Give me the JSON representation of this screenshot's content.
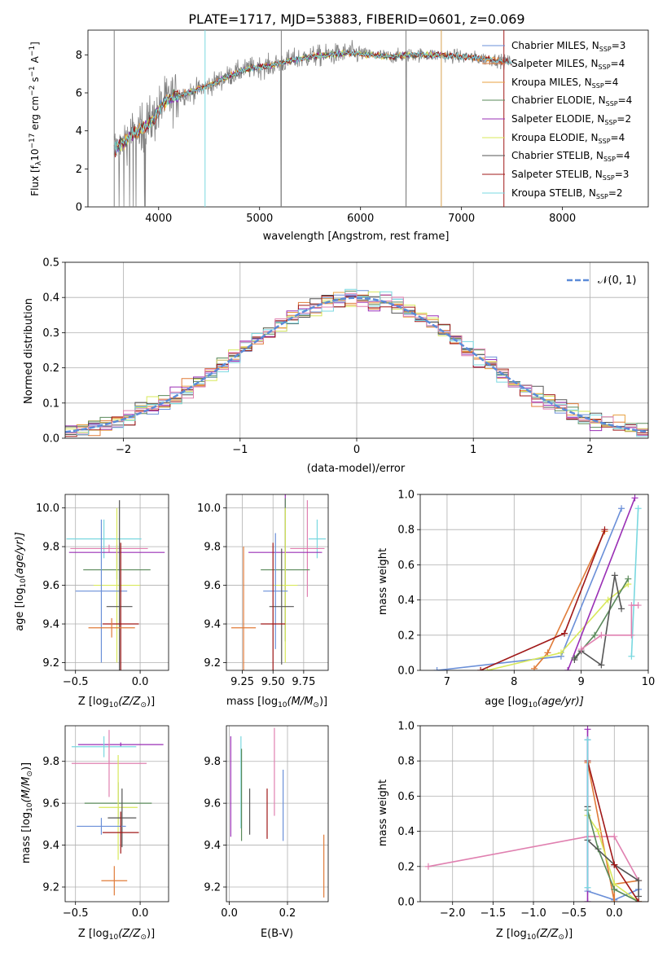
{
  "title": "PLATE=1717, MJD=53883, FIBERID=0601, z=0.069",
  "colors": {
    "chabrier_miles": "#6a8fd8",
    "salpeter_miles": "#e07b39",
    "kroupa_miles": "#e8a040",
    "chabrier_elodie": "#5a8a5a",
    "salpeter_elodie": "#9a2fb5",
    "kroupa_elodie": "#d8e85a",
    "chabrier_stelib": "#555555",
    "salpeter_stelib": "#a01818",
    "kroupa_stelib": "#7ad8e0",
    "pink": "#e080b0",
    "spectrum_grey": "#808080",
    "normal": "#5b8bd8"
  },
  "chart_data": [
    {
      "id": "spectrum",
      "type": "line",
      "xlabel": "wavelength [Angstrom, rest frame]",
      "ylabel_parts": [
        "Flux [f",
        "λ",
        "10",
        "−17",
        " erg cm",
        "−2",
        " s",
        "−1",
        " A",
        "−1",
        "]"
      ],
      "xlim": [
        3300,
        8850
      ],
      "ylim": [
        0,
        9.3
      ],
      "xticks": [
        4000,
        5000,
        6000,
        7000,
        8000
      ],
      "yticks": [
        0,
        2,
        4,
        6,
        8
      ],
      "continuum": [
        [
          3550,
          3.0
        ],
        [
          3650,
          3.4
        ],
        [
          3750,
          3.9
        ],
        [
          3850,
          4.2
        ],
        [
          3950,
          4.6
        ],
        [
          4050,
          5.5
        ],
        [
          4150,
          5.8
        ],
        [
          4300,
          6.0
        ],
        [
          4500,
          6.4
        ],
        [
          4700,
          6.9
        ],
        [
          4900,
          7.3
        ],
        [
          5100,
          7.4
        ],
        [
          5300,
          7.7
        ],
        [
          5500,
          7.9
        ],
        [
          5700,
          8.0
        ],
        [
          5900,
          8.1
        ],
        [
          6100,
          8.0
        ],
        [
          6300,
          7.9
        ],
        [
          6500,
          8.0
        ],
        [
          6700,
          8.0
        ],
        [
          6900,
          7.95
        ],
        [
          7100,
          7.85
        ],
        [
          7300,
          7.75
        ],
        [
          7500,
          7.6
        ],
        [
          7700,
          7.4
        ],
        [
          7900,
          7.2
        ],
        [
          8100,
          7.0
        ],
        [
          8300,
          6.8
        ],
        [
          8500,
          6.6
        ],
        [
          8750,
          6.4
        ]
      ],
      "legend": [
        {
          "label": "Chabrier MILES, N",
          "sub": "SSP",
          "tail": "=3",
          "color_key": "chabrier_miles"
        },
        {
          "label": "Salpeter MILES, N",
          "sub": "SSP",
          "tail": "=4",
          "color_key": "salpeter_miles"
        },
        {
          "label": "Kroupa MILES, N",
          "sub": "SSP",
          "tail": "=4",
          "color_key": "kroupa_miles"
        },
        {
          "label": "Chabrier ELODIE, N",
          "sub": "SSP",
          "tail": "=4",
          "color_key": "chabrier_elodie"
        },
        {
          "label": "Salpeter ELODIE, N",
          "sub": "SSP",
          "tail": "=2",
          "color_key": "salpeter_elodie"
        },
        {
          "label": "Kroupa ELODIE, N",
          "sub": "SSP",
          "tail": "=4",
          "color_key": "kroupa_elodie"
        },
        {
          "label": "Chabrier STELIB, N",
          "sub": "SSP",
          "tail": "=4",
          "color_key": "chabrier_stelib"
        },
        {
          "label": "Salpeter STELIB, N",
          "sub": "SSP",
          "tail": "=3",
          "color_key": "salpeter_stelib"
        },
        {
          "label": "Kroupa STELIB, N",
          "sub": "SSP",
          "tail": "=2",
          "color_key": "kroupa_stelib"
        }
      ],
      "legend_placement": "right",
      "grid": false
    },
    {
      "id": "residuals",
      "type": "step",
      "xlabel": "(data-model)/error",
      "ylabel": "Normed distribution",
      "xlim": [
        -2.5,
        2.5
      ],
      "ylim": [
        0,
        0.5
      ],
      "xticks": [
        -2,
        -1,
        0,
        1,
        2
      ],
      "xtick_labels": [
        "−2",
        "−1",
        "0",
        "1",
        "2"
      ],
      "yticks": [
        0,
        0.1,
        0.2,
        0.3,
        0.4,
        0.5
      ],
      "ytick_labels": [
        "0.0",
        "0.1",
        "0.2",
        "0.3",
        "0.4",
        "0.5"
      ],
      "legend": {
        "label": "𝒩(0, 1)",
        "color_key": "normal"
      },
      "grid": true
    },
    {
      "id": "z_age",
      "type": "errorbar",
      "xlabel_main": "Z [log",
      "xlabel_sub": "10",
      "xlabel_rest": "(Z/Z",
      "xlabel_sun": "⊙",
      "xlabel_end": ")]",
      "ylabel_main": "age  [log",
      "ylabel_sub": "10",
      "ylabel_rest": "(age/yr)]",
      "xlim": [
        -0.58,
        0.22
      ],
      "ylim": [
        9.16,
        10.07
      ],
      "xticks": [
        -0.5,
        0.0
      ],
      "xtick_labels": [
        "−0.5",
        "0.0"
      ],
      "yticks": [
        9.2,
        9.4,
        9.6,
        9.8,
        10.0
      ],
      "ytick_labels": [
        "9.2",
        "9.4",
        "9.6",
        "9.8",
        "10.0"
      ],
      "points": [
        {
          "x": -0.28,
          "xe": 0.29,
          "y": 9.84,
          "ye": 0.1,
          "color_key": "kroupa_stelib"
        },
        {
          "x": -0.24,
          "xe": 0.3,
          "y": 9.79,
          "ye": 0.02,
          "color_key": "pink"
        },
        {
          "x": -0.18,
          "xe": 0.37,
          "y": 9.77,
          "ye": 0.04,
          "color_key": "salpeter_elodie"
        },
        {
          "x": -0.18,
          "xe": 0.26,
          "y": 9.68,
          "ye": 0.05,
          "color_key": "chabrier_elodie"
        },
        {
          "x": -0.18,
          "xe": 0.18,
          "y": 9.6,
          "ye": 0.4,
          "color_key": "kroupa_elodie"
        },
        {
          "x": -0.3,
          "xe": 0.2,
          "y": 9.57,
          "ye": 0.37,
          "color_key": "chabrier_miles"
        },
        {
          "x": -0.16,
          "xe": 0.1,
          "y": 9.49,
          "ye": 0.55,
          "color_key": "chabrier_stelib"
        },
        {
          "x": -0.15,
          "xe": 0.14,
          "y": 9.4,
          "ye": 0.42,
          "color_key": "salpeter_stelib"
        },
        {
          "x": -0.22,
          "xe": 0.18,
          "y": 9.38,
          "ye": 0.05,
          "color_key": "salpeter_miles"
        }
      ],
      "grid": true
    },
    {
      "id": "mass_age",
      "type": "errorbar",
      "xlabel_main": "mass [log",
      "xlabel_sub": "10",
      "xlabel_rest": "(M/M",
      "xlabel_sun": "⊙",
      "xlabel_end": ")]",
      "xlim": [
        9.12,
        9.95
      ],
      "ylim": [
        9.16,
        10.07
      ],
      "xticks": [
        9.25,
        9.5,
        9.75
      ],
      "xtick_labels": [
        "9.25",
        "9.50",
        "9.75"
      ],
      "yticks": [
        9.2,
        9.4,
        9.6,
        9.8,
        10.0
      ],
      "ytick_labels": [
        "9.2",
        "9.4",
        "9.6",
        "9.8",
        "10.0"
      ],
      "points": [
        {
          "x": 9.86,
          "xe": 0.07,
          "y": 9.84,
          "ye": 0.1,
          "color_key": "kroupa_stelib"
        },
        {
          "x": 9.78,
          "xe": 0.14,
          "y": 9.79,
          "ye": 0.25,
          "color_key": "pink"
        },
        {
          "x": 9.6,
          "xe": 0.3,
          "y": 9.77,
          "ye": 0.4,
          "color_key": "salpeter_elodie"
        },
        {
          "x": 9.6,
          "xe": 0.2,
          "y": 9.68,
          "ye": 0.37,
          "color_key": "chabrier_elodie"
        },
        {
          "x": 9.6,
          "xe": 0.1,
          "y": 9.6,
          "ye": 0.4,
          "color_key": "kroupa_elodie"
        },
        {
          "x": 9.52,
          "xe": 0.1,
          "y": 9.57,
          "ye": 0.3,
          "color_key": "chabrier_miles"
        },
        {
          "x": 9.57,
          "xe": 0.1,
          "y": 9.49,
          "ye": 0.3,
          "color_key": "chabrier_stelib"
        },
        {
          "x": 9.5,
          "xe": 0.1,
          "y": 9.4,
          "ye": 0.42,
          "color_key": "salpeter_stelib"
        },
        {
          "x": 9.26,
          "xe": 0.1,
          "y": 9.38,
          "ye": 0.42,
          "color_key": "salpeter_miles"
        }
      ],
      "grid": true
    },
    {
      "id": "age_weight",
      "type": "line",
      "xlabel_main": "age  [log",
      "xlabel_sub": "10",
      "xlabel_rest": "(age/yr)]",
      "ylabel": "mass weight",
      "xlim": [
        6.6,
        10.0
      ],
      "ylim": [
        0.0,
        1.0
      ],
      "xticks": [
        7,
        8,
        9,
        10
      ],
      "yticks": [
        0.0,
        0.2,
        0.4,
        0.6,
        0.8,
        1.0
      ],
      "ytick_labels": [
        "0.0",
        "0.2",
        "0.4",
        "0.6",
        "0.8",
        "1.0"
      ],
      "series": [
        {
          "color_key": "chabrier_miles",
          "points": [
            [
              6.85,
              0.0
            ],
            [
              8.7,
              0.08
            ],
            [
              9.6,
              0.92
            ]
          ]
        },
        {
          "color_key": "salpeter_miles",
          "points": [
            [
              8.3,
              0.01
            ],
            [
              8.5,
              0.1
            ],
            [
              9.35,
              0.79
            ]
          ]
        },
        {
          "color_key": "kroupa_elodie",
          "points": [
            [
              7.6,
              0.0
            ],
            [
              8.7,
              0.1
            ],
            [
              9.4,
              0.4
            ],
            [
              9.7,
              0.49
            ]
          ]
        },
        {
          "color_key": "salpeter_elodie",
          "points": [
            [
              8.8,
              0.0
            ],
            [
              9.8,
              0.98
            ]
          ]
        },
        {
          "color_key": "chabrier_elodie",
          "points": [
            [
              8.9,
              0.07
            ],
            [
              9.2,
              0.2
            ],
            [
              9.7,
              0.52
            ]
          ]
        },
        {
          "color_key": "chabrier_stelib",
          "points": [
            [
              8.9,
              0.06
            ],
            [
              9.0,
              0.11
            ],
            [
              9.3,
              0.03
            ],
            [
              9.5,
              0.54
            ],
            [
              9.6,
              0.35
            ]
          ]
        },
        {
          "color_key": "salpeter_stelib",
          "points": [
            [
              7.5,
              0.0
            ],
            [
              8.75,
              0.21
            ],
            [
              9.35,
              0.8
            ]
          ]
        },
        {
          "color_key": "kroupa_stelib",
          "points": [
            [
              9.75,
              0.08
            ],
            [
              9.85,
              0.92
            ]
          ]
        },
        {
          "color_key": "pink",
          "points": [
            [
              9.0,
              0.12
            ],
            [
              9.3,
              0.2
            ],
            [
              9.75,
              0.2
            ],
            [
              9.75,
              0.37
            ],
            [
              9.85,
              0.37
            ]
          ]
        }
      ],
      "grid": true
    },
    {
      "id": "z_mass",
      "type": "errorbar",
      "xlabel_main": "Z [log",
      "xlabel_sub": "10",
      "xlabel_rest": "(Z/Z",
      "xlabel_sun": "⊙",
      "xlabel_end": ")]",
      "ylabel_main": "mass [log",
      "ylabel_sub": "10",
      "ylabel_rest": "(M/M",
      "ylabel_sun": "⊙",
      "ylabel_end": ")]",
      "xlim": [
        -0.58,
        0.22
      ],
      "ylim": [
        9.13,
        9.97
      ],
      "xticks": [
        -0.5,
        0.0
      ],
      "xtick_labels": [
        "−0.5",
        "0.0"
      ],
      "yticks": [
        9.2,
        9.4,
        9.6,
        9.8
      ],
      "ytick_labels": [
        "9.2",
        "9.4",
        "9.6",
        "9.8"
      ],
      "points": [
        {
          "x": -0.15,
          "xe": 0.33,
          "y": 9.88,
          "ye": 0.01,
          "color_key": "salpeter_elodie"
        },
        {
          "x": -0.28,
          "xe": 0.25,
          "y": 9.87,
          "ye": 0.05,
          "color_key": "kroupa_stelib"
        },
        {
          "x": -0.24,
          "xe": 0.29,
          "y": 9.79,
          "ye": 0.16,
          "color_key": "pink"
        },
        {
          "x": -0.17,
          "xe": 0.26,
          "y": 9.6,
          "ye": 0.1,
          "color_key": "chabrier_elodie"
        },
        {
          "x": -0.17,
          "xe": 0.15,
          "y": 9.58,
          "ye": 0.25,
          "color_key": "kroupa_elodie"
        },
        {
          "x": -0.14,
          "xe": 0.11,
          "y": 9.53,
          "ye": 0.14,
          "color_key": "chabrier_stelib"
        },
        {
          "x": -0.3,
          "xe": 0.19,
          "y": 9.49,
          "ye": 0.04,
          "color_key": "chabrier_miles"
        },
        {
          "x": -0.15,
          "xe": 0.14,
          "y": 9.46,
          "ye": 0.1,
          "color_key": "salpeter_stelib"
        },
        {
          "x": -0.2,
          "xe": 0.1,
          "y": 9.23,
          "ye": 0.07,
          "color_key": "salpeter_miles"
        }
      ],
      "grid": true
    },
    {
      "id": "ebv_mass",
      "type": "errorbar",
      "xlabel": "E(B-V)",
      "xlim": [
        -0.01,
        0.34
      ],
      "ylim": [
        9.13,
        9.97
      ],
      "xticks": [
        0.0,
        0.2
      ],
      "xtick_labels": [
        "0.0",
        "0.2"
      ],
      "yticks": [
        9.2,
        9.4,
        9.6,
        9.8
      ],
      "ytick_labels": [
        "9.2",
        "9.4",
        "9.6",
        "9.8"
      ],
      "points": [
        {
          "x": 0.005,
          "y": 9.68,
          "ye": 0.24,
          "color_key": "salpeter_elodie"
        },
        {
          "x": 0.04,
          "y": 9.7,
          "ye": 0.22,
          "color_key": "kroupa_stelib"
        },
        {
          "x": 0.042,
          "y": 9.64,
          "ye": 0.22,
          "color_key": "chabrier_elodie"
        },
        {
          "x": 0.07,
          "y": 9.56,
          "ye": 0.11,
          "color_key": "chabrier_stelib"
        },
        {
          "x": 0.13,
          "y": 9.55,
          "ye": 0.12,
          "color_key": "salpeter_stelib"
        },
        {
          "x": 0.155,
          "y": 9.75,
          "ye": 0.21,
          "color_key": "pink"
        },
        {
          "x": 0.185,
          "y": 9.59,
          "ye": 0.17,
          "color_key": "chabrier_miles"
        },
        {
          "x": 0.325,
          "y": 9.3,
          "ye": 0.15,
          "color_key": "salpeter_miles"
        }
      ],
      "grid": true
    },
    {
      "id": "z_weight",
      "type": "line",
      "xlabel_main": "Z [log",
      "xlabel_sub": "10",
      "xlabel_rest": "(Z/Z",
      "xlabel_sun": "⊙",
      "xlabel_end": ")]",
      "ylabel": "mass weight",
      "xlim": [
        -2.4,
        0.42
      ],
      "ylim": [
        0.0,
        1.0
      ],
      "xticks": [
        -2.0,
        -1.5,
        -1.0,
        -0.5,
        0.0
      ],
      "xtick_labels": [
        "−2.0",
        "−1.5",
        "−1.0",
        "−0.5",
        "0.0"
      ],
      "yticks": [
        0.0,
        0.2,
        0.4,
        0.6,
        0.8,
        1.0
      ],
      "ytick_labels": [
        "0.0",
        "0.2",
        "0.4",
        "0.6",
        "0.8",
        "1.0"
      ],
      "series": [
        {
          "color_key": "pink",
          "points": [
            [
              -2.3,
              0.2
            ],
            [
              -0.33,
              0.37
            ],
            [
              0.0,
              0.37
            ],
            [
              0.3,
              0.12
            ]
          ]
        },
        {
          "color_key": "chabrier_miles",
          "points": [
            [
              -0.33,
              0.92
            ],
            [
              -0.33,
              0.06
            ],
            [
              0.0,
              0.01
            ],
            [
              0.3,
              0.07
            ]
          ]
        },
        {
          "color_key": "salpeter_miles",
          "points": [
            [
              -0.33,
              0.79
            ],
            [
              0.0,
              0.0
            ],
            [
              0.0,
              0.1
            ],
            [
              0.3,
              0.12
            ]
          ]
        },
        {
          "color_key": "kroupa_elodie",
          "points": [
            [
              -0.33,
              0.49
            ],
            [
              -0.2,
              0.4
            ],
            [
              0.0,
              0.1
            ],
            [
              0.3,
              0.0
            ]
          ]
        },
        {
          "color_key": "salpeter_elodie",
          "points": [
            [
              -0.33,
              0.98
            ],
            [
              -0.33,
              0.0
            ]
          ]
        },
        {
          "color_key": "chabrier_elodie",
          "points": [
            [
              -0.33,
              0.52
            ],
            [
              -0.2,
              0.3
            ],
            [
              0.0,
              0.07
            ],
            [
              0.3,
              0.0
            ]
          ]
        },
        {
          "color_key": "chabrier_stelib",
          "points": [
            [
              -0.33,
              0.54
            ],
            [
              -0.33,
              0.35
            ],
            [
              0.0,
              0.21
            ],
            [
              0.3,
              0.12
            ],
            [
              0.3,
              0.03
            ]
          ]
        },
        {
          "color_key": "salpeter_stelib",
          "points": [
            [
              -0.33,
              0.8
            ],
            [
              0.0,
              0.21
            ],
            [
              0.3,
              0.0
            ]
          ]
        },
        {
          "color_key": "kroupa_stelib",
          "points": [
            [
              -0.33,
              0.92
            ],
            [
              -0.33,
              0.08
            ]
          ]
        }
      ],
      "grid": true
    }
  ]
}
